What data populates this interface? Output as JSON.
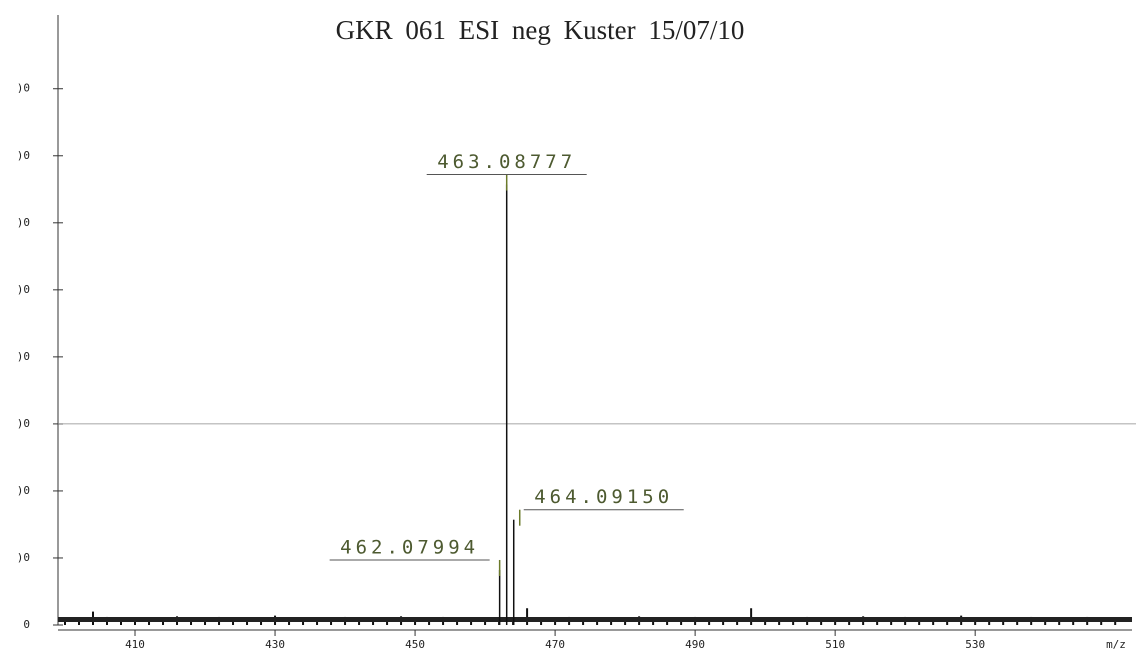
{
  "chart_data": {
    "type": "stick",
    "title": "GKR 061   ESI neg   Kuster   15/07/10",
    "x_label": "m/z",
    "xlim": [
      399,
      552.4
    ],
    "xticks": [
      410,
      430,
      450,
      470,
      490,
      510,
      530
    ],
    "ylim": [
      0,
      910
    ],
    "yticks": [
      0,
      {
        "value": 100,
        "label": ")0"
      },
      {
        "value": 200,
        "label": ")0"
      },
      {
        "value": 300,
        "label": ")0"
      },
      {
        "value": 400,
        "label": ")0"
      },
      {
        "value": 500,
        "label": ")0"
      },
      {
        "value": 600,
        "label": ")0"
      },
      {
        "value": 700,
        "label": ")0"
      },
      {
        "value": 800,
        "label": ")0"
      }
    ],
    "peaks": {
      "x": [
        462.07994,
        463.08777,
        464.0915
      ],
      "values": [
        97,
        672,
        172
      ],
      "x_labels": [
        "462.07994",
        "463.08777",
        "464.09150"
      ]
    },
    "noise": {
      "x": [
        400,
        402,
        404,
        406,
        408,
        410,
        412,
        414,
        416,
        418,
        420,
        422,
        424,
        426,
        428,
        430,
        432,
        434,
        436,
        438,
        440,
        442,
        444,
        446,
        448,
        450,
        452,
        454,
        456,
        458,
        460,
        462,
        464,
        466,
        468,
        470,
        472,
        474,
        476,
        478,
        480,
        482,
        484,
        486,
        488,
        490,
        492,
        494,
        496,
        498,
        500,
        502,
        504,
        506,
        508,
        510,
        512,
        514,
        516,
        518,
        520,
        522,
        524,
        526,
        528,
        530,
        532,
        534,
        536,
        538,
        540,
        542,
        544,
        546,
        548,
        550
      ],
      "values": [
        10,
        9,
        20,
        12,
        8,
        11,
        10,
        9,
        13,
        10,
        8,
        12,
        11,
        9,
        10,
        14,
        9,
        11,
        10,
        8,
        12,
        10,
        9,
        11,
        13,
        10,
        9,
        12,
        8,
        11,
        10,
        9,
        10,
        25,
        11,
        9,
        12,
        10,
        8,
        11,
        10,
        13,
        9,
        11,
        10,
        12,
        8,
        10,
        9,
        25,
        11,
        10,
        9,
        12,
        10,
        8,
        11,
        13,
        9,
        10,
        12,
        9,
        11,
        10,
        14,
        8,
        10,
        11,
        9,
        12,
        10,
        11,
        9,
        12,
        10,
        11
      ]
    }
  }
}
